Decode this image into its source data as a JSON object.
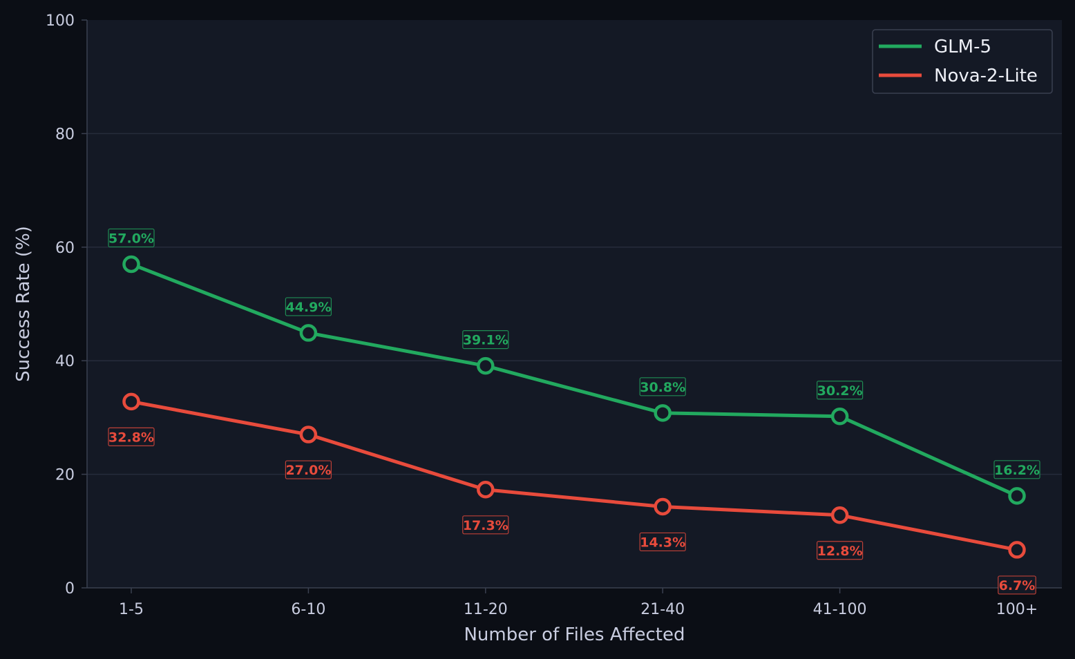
{
  "chart_data": {
    "type": "line",
    "title": "",
    "xlabel": "Number of Files Affected",
    "ylabel": "Success Rate (%)",
    "categories": [
      "1-5",
      "6-10",
      "11-20",
      "21-40",
      "41-100",
      "100+"
    ],
    "ylim": [
      0,
      100
    ],
    "yticks": [
      0,
      20,
      40,
      60,
      80,
      100
    ],
    "grid": "horizontal",
    "legend_position": "top-right",
    "series": [
      {
        "name": "GLM-5",
        "color": "#22a95f",
        "values": [
          57.0,
          44.9,
          39.1,
          30.8,
          30.2,
          16.2
        ],
        "labels": [
          "57.0%",
          "44.9%",
          "39.1%",
          "30.8%",
          "30.2%",
          "16.2%"
        ],
        "label_side": "above"
      },
      {
        "name": "Nova-2-Lite",
        "color": "#e84b3c",
        "values": [
          32.8,
          27.0,
          17.3,
          14.3,
          12.8,
          6.7
        ],
        "labels": [
          "32.8%",
          "27.0%",
          "17.3%",
          "14.3%",
          "12.8%",
          "6.7%"
        ],
        "label_side": "below"
      }
    ]
  },
  "colors": {
    "page_background": "#0b0e15",
    "plot_background": "#141925",
    "grid": "#262c3b",
    "axis": "#3a4050",
    "text": "#c9cde0"
  }
}
